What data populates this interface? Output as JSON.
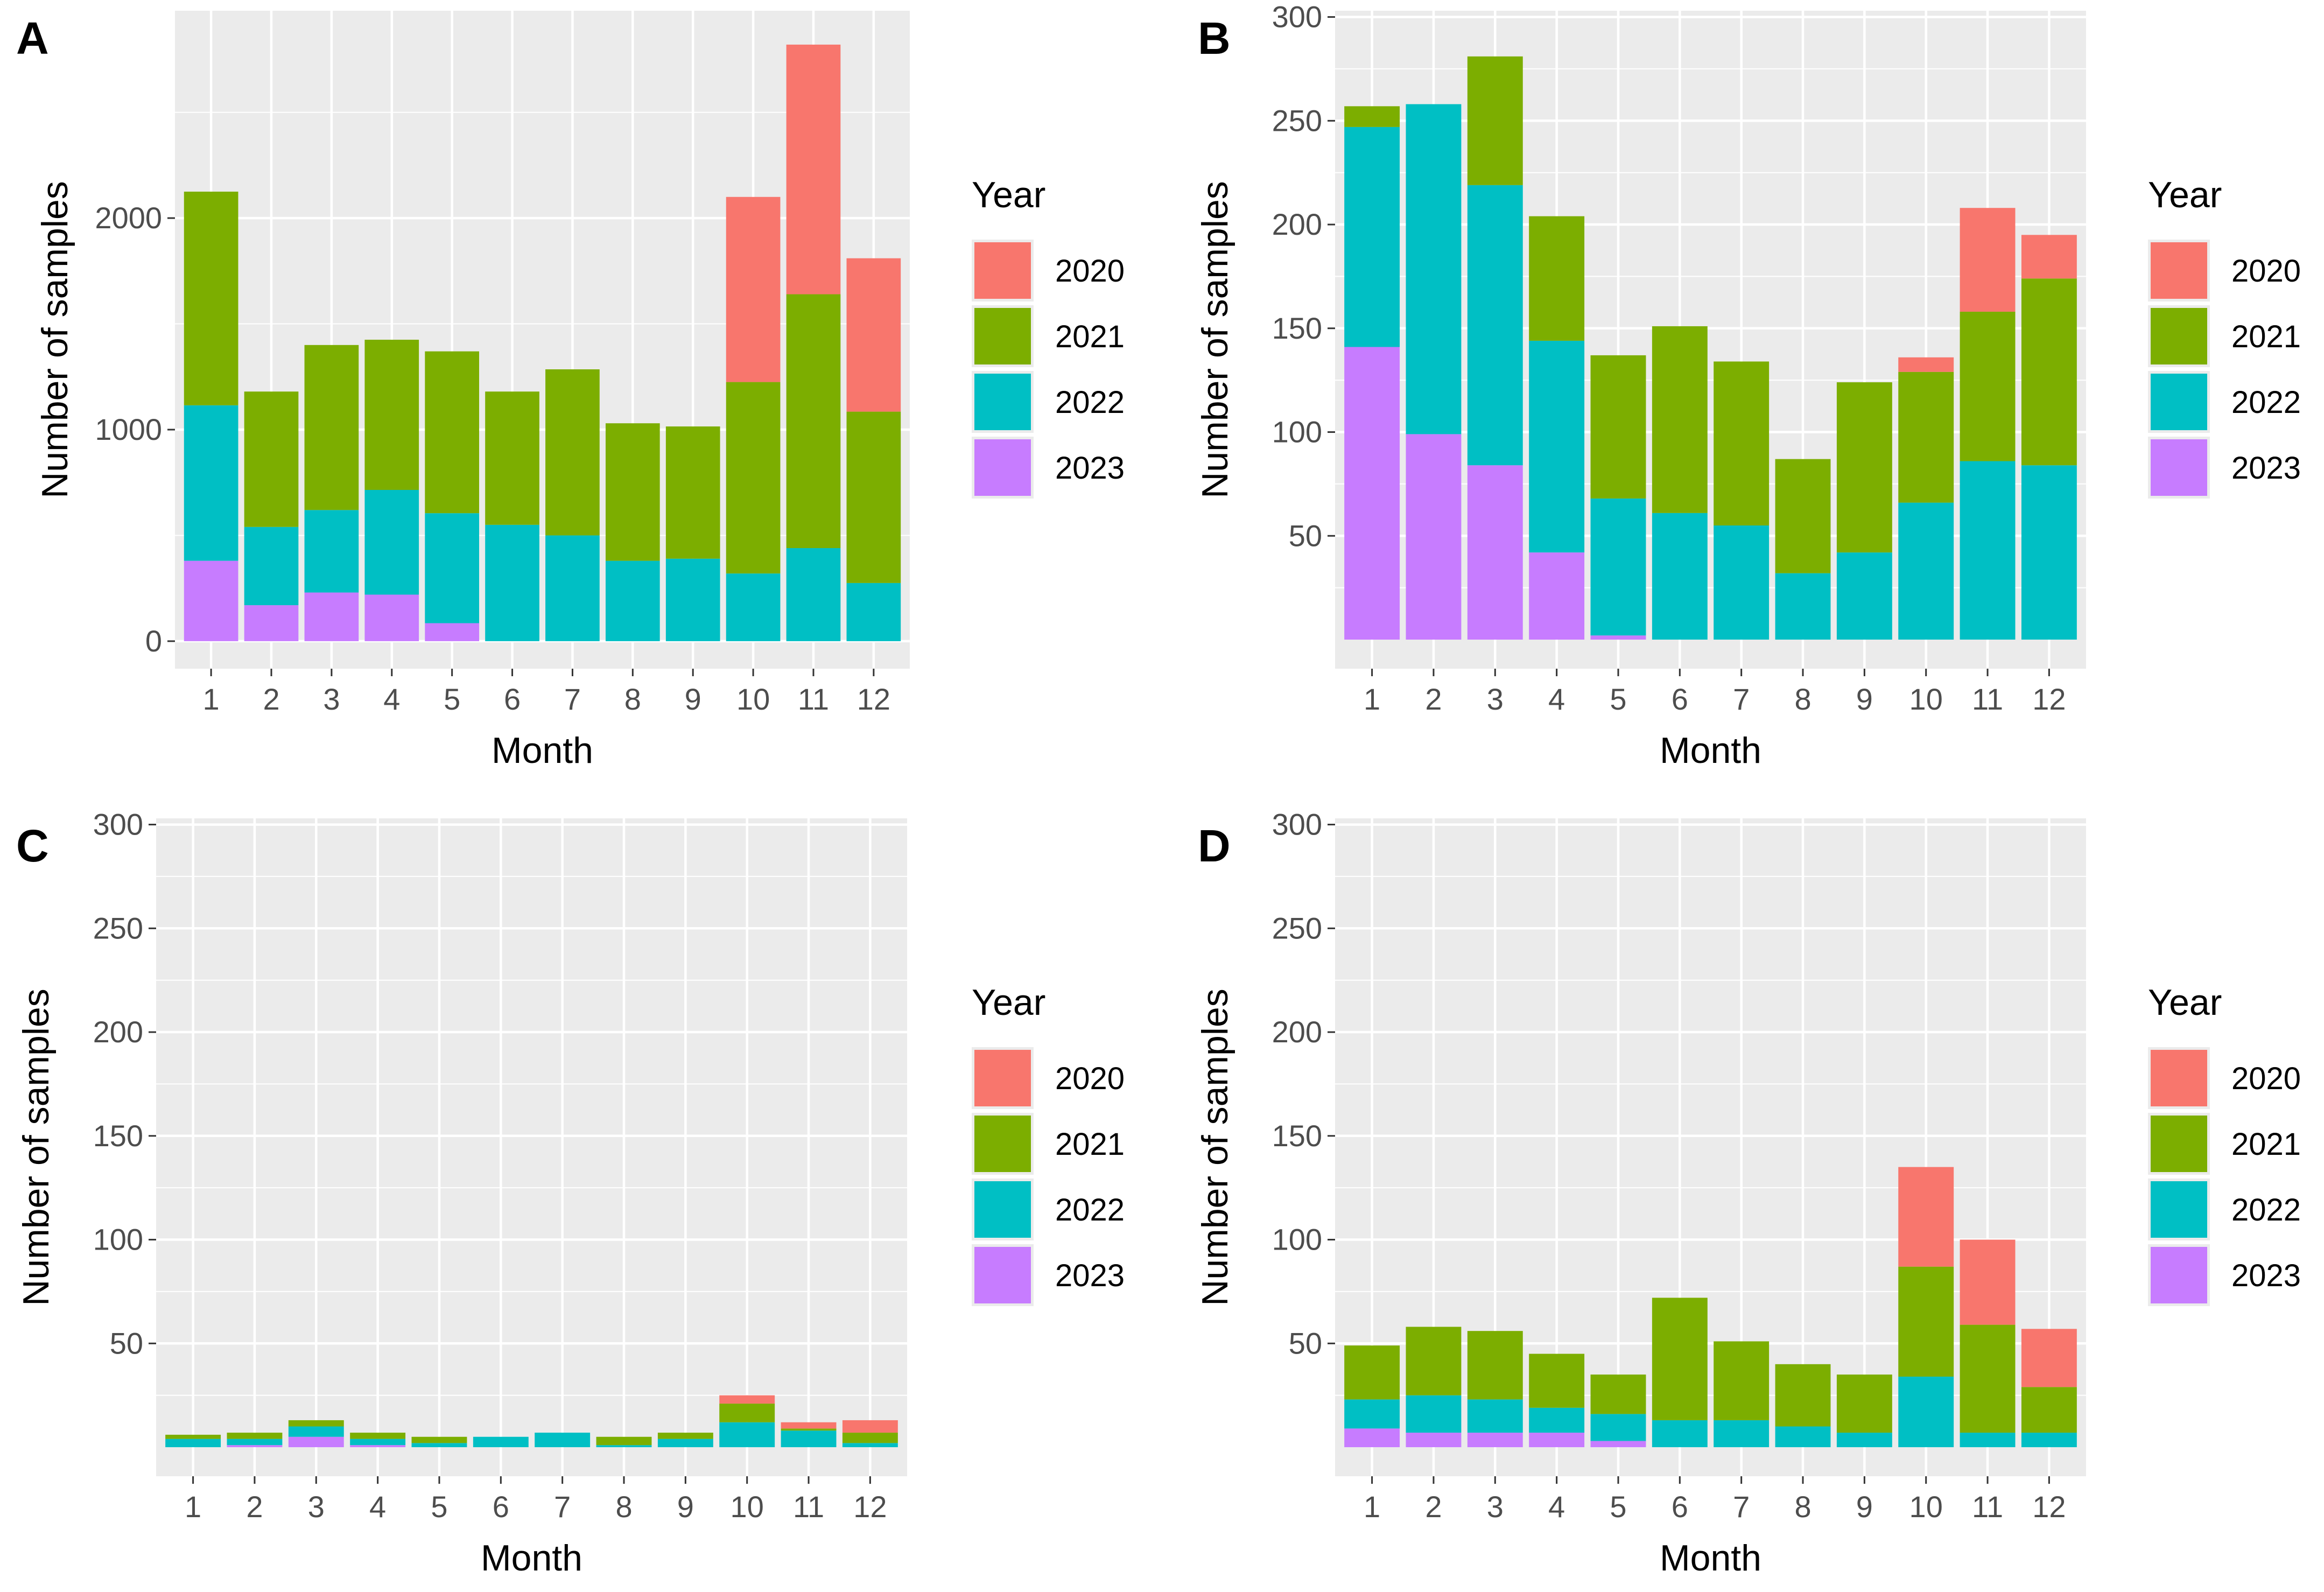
{
  "legend": {
    "title": "Year",
    "entries": [
      {
        "label": "2020",
        "color": "#F8766D"
      },
      {
        "label": "2021",
        "color": "#7CAE00"
      },
      {
        "label": "2022",
        "color": "#00BFC4"
      },
      {
        "label": "2023",
        "color": "#C77CFF"
      }
    ]
  },
  "colors": {
    "panel_bg": "#EBEBEB",
    "grid": "#FFFFFF",
    "axis_text": "#4D4D4D",
    "title_text": "#000000"
  },
  "chart_data": [
    {
      "panel": "A",
      "type": "bar",
      "stacked": true,
      "xlabel": "Month",
      "ylabel": "Number of samples",
      "categories": [
        "1",
        "2",
        "3",
        "4",
        "5",
        "6",
        "7",
        "8",
        "9",
        "10",
        "11",
        "12"
      ],
      "ylim": [
        -130,
        2980
      ],
      "yticks": [
        0,
        1000,
        2000
      ],
      "series": [
        {
          "name": "2023",
          "values": [
            380,
            170,
            230,
            220,
            85,
            0,
            0,
            0,
            0,
            0,
            0,
            0
          ]
        },
        {
          "name": "2022",
          "values": [
            735,
            370,
            390,
            495,
            520,
            550,
            500,
            380,
            390,
            320,
            440,
            275
          ]
        },
        {
          "name": "2021",
          "values": [
            1010,
            640,
            780,
            710,
            765,
            630,
            785,
            650,
            625,
            905,
            1200,
            810
          ]
        },
        {
          "name": "2020",
          "values": [
            0,
            0,
            0,
            0,
            0,
            0,
            0,
            0,
            0,
            875,
            1180,
            725
          ]
        }
      ]
    },
    {
      "panel": "B",
      "type": "bar",
      "stacked": true,
      "xlabel": "Month",
      "ylabel": "Number of samples",
      "categories": [
        "1",
        "2",
        "3",
        "4",
        "5",
        "6",
        "7",
        "8",
        "9",
        "10",
        "11",
        "12"
      ],
      "ylim": [
        -14,
        303
      ],
      "yticks": [
        50,
        100,
        150,
        200,
        250,
        300
      ],
      "series": [
        {
          "name": "2023",
          "values": [
            141,
            99,
            84,
            42,
            2,
            0,
            0,
            0,
            0,
            0,
            0,
            0
          ]
        },
        {
          "name": "2022",
          "values": [
            106,
            159,
            135,
            102,
            66,
            61,
            55,
            32,
            42,
            66,
            86,
            84
          ]
        },
        {
          "name": "2021",
          "values": [
            10,
            0,
            62,
            60,
            69,
            90,
            79,
            55,
            82,
            63,
            72,
            90
          ]
        },
        {
          "name": "2020",
          "values": [
            0,
            0,
            0,
            0,
            0,
            0,
            0,
            0,
            0,
            7,
            50,
            21
          ]
        }
      ]
    },
    {
      "panel": "C",
      "type": "bar",
      "stacked": true,
      "xlabel": "Month",
      "ylabel": "Number of samples",
      "categories": [
        "1",
        "2",
        "3",
        "4",
        "5",
        "6",
        "7",
        "8",
        "9",
        "10",
        "11",
        "12"
      ],
      "ylim": [
        -14,
        303
      ],
      "yticks": [
        50,
        100,
        150,
        200,
        250,
        300
      ],
      "series": [
        {
          "name": "2023",
          "values": [
            0,
            1,
            5,
            1,
            0,
            0,
            0,
            0,
            0,
            0,
            0,
            0
          ]
        },
        {
          "name": "2022",
          "values": [
            4,
            3,
            5,
            3,
            2,
            5,
            7,
            1,
            4,
            12,
            8,
            2
          ]
        },
        {
          "name": "2021",
          "values": [
            2,
            3,
            3,
            3,
            3,
            0,
            0,
            4,
            3,
            9,
            1,
            5
          ]
        },
        {
          "name": "2020",
          "values": [
            0,
            0,
            0,
            0,
            0,
            0,
            0,
            0,
            0,
            4,
            3,
            6
          ]
        }
      ]
    },
    {
      "panel": "D",
      "type": "bar",
      "stacked": true,
      "xlabel": "Month",
      "ylabel": "Number of samples",
      "categories": [
        "1",
        "2",
        "3",
        "4",
        "5",
        "6",
        "7",
        "8",
        "9",
        "10",
        "11",
        "12"
      ],
      "ylim": [
        -14,
        303
      ],
      "yticks": [
        50,
        100,
        150,
        200,
        250,
        300
      ],
      "series": [
        {
          "name": "2023",
          "values": [
            9,
            7,
            7,
            7,
            3,
            0,
            0,
            0,
            0,
            0,
            0,
            0
          ]
        },
        {
          "name": "2022",
          "values": [
            14,
            18,
            16,
            12,
            13,
            13,
            13,
            10,
            7,
            34,
            7,
            7
          ]
        },
        {
          "name": "2021",
          "values": [
            26,
            33,
            33,
            26,
            19,
            59,
            38,
            30,
            28,
            53,
            52,
            22
          ]
        },
        {
          "name": "2020",
          "values": [
            0,
            0,
            0,
            0,
            0,
            0,
            0,
            0,
            0,
            48,
            41,
            28
          ]
        }
      ]
    }
  ]
}
